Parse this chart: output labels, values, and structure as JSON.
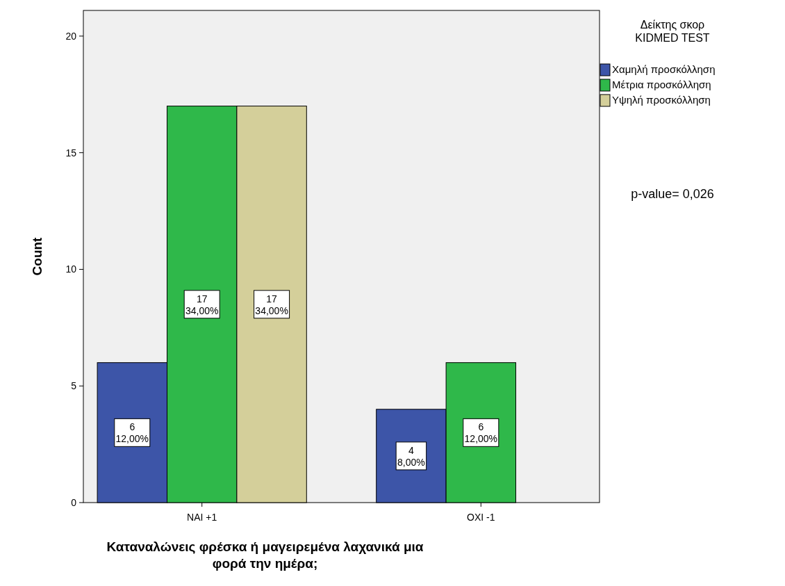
{
  "chart_data": {
    "type": "bar",
    "ylabel": "Count",
    "xlabel": "Καταναλώνεις φρέσκα ή μαγειρεμένα λαχανικά μια\nφορά την ημέρα;",
    "legend_title": "Δείκτης σκορ\nKIDMED TEST",
    "categories": [
      "NAI +1",
      "OXI -1"
    ],
    "series": [
      {
        "name": "Χαμηλή προσκόλληση",
        "color": "#3d55a8",
        "values": [
          6,
          4
        ],
        "value_labels": [
          "6\n12,00%",
          "4\n8,00%"
        ]
      },
      {
        "name": "Μέτρια προσκόλληση",
        "color": "#2fb84a",
        "values": [
          17,
          6
        ],
        "value_labels": [
          "17\n34,00%",
          "6\n12,00%"
        ]
      },
      {
        "name": "Υψηλή προσκόλληση",
        "color": "#d4cf9a",
        "values": [
          17,
          null
        ],
        "value_labels": [
          "17\n34,00%",
          null
        ]
      }
    ],
    "ylim": [
      0,
      21.1
    ],
    "yticks": [
      0,
      5,
      10,
      15,
      20
    ],
    "grid": false,
    "legend": "top right",
    "annotations": [
      "p-value= 0,026"
    ]
  }
}
